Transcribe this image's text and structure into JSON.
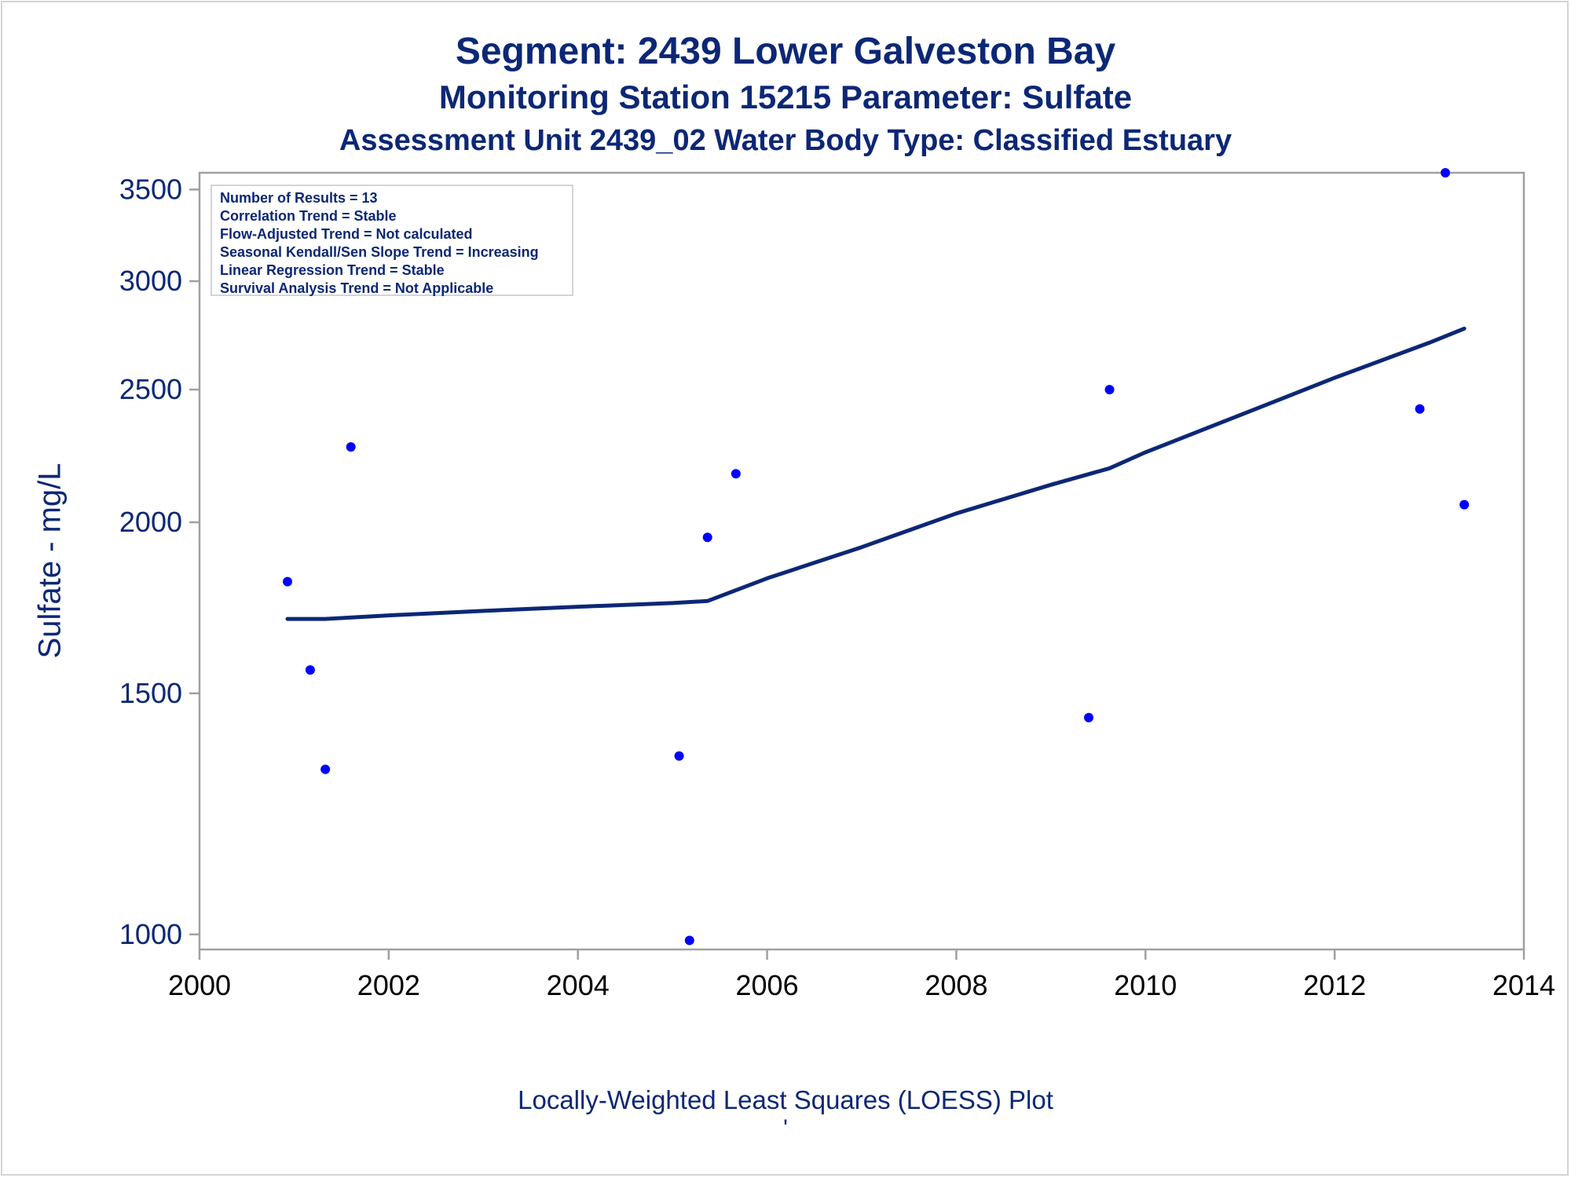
{
  "titles": {
    "line1": "Segment: 2439  Lower Galveston Bay",
    "line2": "Monitoring Station 15215 Parameter: Sulfate",
    "line3": "Assessment Unit 2439_02   Water Body Type: Classified Estuary"
  },
  "stats_box": [
    "Number of Results = 13",
    "Correlation Trend = Stable",
    "Flow-Adjusted Trend = Not calculated",
    "Seasonal Kendall/Sen Slope Trend = Increasing",
    "Linear Regression Trend = Stable",
    "Survival Analysis Trend = Not Applicable"
  ],
  "footnote": "'",
  "colors": {
    "text": "#0c2776",
    "points": "#0000ff",
    "loess_line": "#0c2776",
    "axis": "#a0a0a0",
    "tick_labels_y": "#0c2776",
    "tick_labels_x": "#000000"
  },
  "chart_data": {
    "type": "scatter",
    "title": "Segment: 2439  Lower Galveston Bay",
    "subtitle": "Monitoring Station 15215 Parameter: Sulfate",
    "xlabel": "Locally-Weighted Least Squares (LOESS) Plot",
    "ylabel": "Sulfate - mg/L",
    "x_range": [
      2000,
      2014
    ],
    "y_range": [
      975,
      3600
    ],
    "y_scale": "log",
    "x_ticks": [
      2000,
      2002,
      2004,
      2006,
      2008,
      2010,
      2012,
      2014
    ],
    "y_ticks": [
      1000,
      1500,
      2000,
      2500,
      3000,
      3500
    ],
    "grid": false,
    "legend": "none",
    "series": [
      {
        "type": "scatter",
        "points": [
          {
            "x": 2000.93,
            "y": 1810
          },
          {
            "x": 2001.17,
            "y": 1560
          },
          {
            "x": 2001.33,
            "y": 1320
          },
          {
            "x": 2001.6,
            "y": 2270
          },
          {
            "x": 2005.07,
            "y": 1350
          },
          {
            "x": 2005.18,
            "y": 990
          },
          {
            "x": 2005.37,
            "y": 1950
          },
          {
            "x": 2005.67,
            "y": 2170
          },
          {
            "x": 2009.4,
            "y": 1440
          },
          {
            "x": 2009.62,
            "y": 2500
          },
          {
            "x": 2012.9,
            "y": 2420
          },
          {
            "x": 2013.17,
            "y": 3600
          },
          {
            "x": 2013.37,
            "y": 2060
          }
        ]
      },
      {
        "type": "line",
        "points": [
          {
            "x": 2000.93,
            "y": 1700
          },
          {
            "x": 2001.33,
            "y": 1700
          },
          {
            "x": 2002.0,
            "y": 1710
          },
          {
            "x": 2003.0,
            "y": 1723
          },
          {
            "x": 2004.0,
            "y": 1735
          },
          {
            "x": 2005.0,
            "y": 1746
          },
          {
            "x": 2005.37,
            "y": 1752
          },
          {
            "x": 2006.0,
            "y": 1820
          },
          {
            "x": 2007.0,
            "y": 1918
          },
          {
            "x": 2008.0,
            "y": 2030
          },
          {
            "x": 2009.0,
            "y": 2130
          },
          {
            "x": 2009.62,
            "y": 2190
          },
          {
            "x": 2010.0,
            "y": 2250
          },
          {
            "x": 2011.0,
            "y": 2395
          },
          {
            "x": 2012.0,
            "y": 2550
          },
          {
            "x": 2013.0,
            "y": 2705
          },
          {
            "x": 2013.37,
            "y": 2770
          }
        ]
      }
    ]
  }
}
